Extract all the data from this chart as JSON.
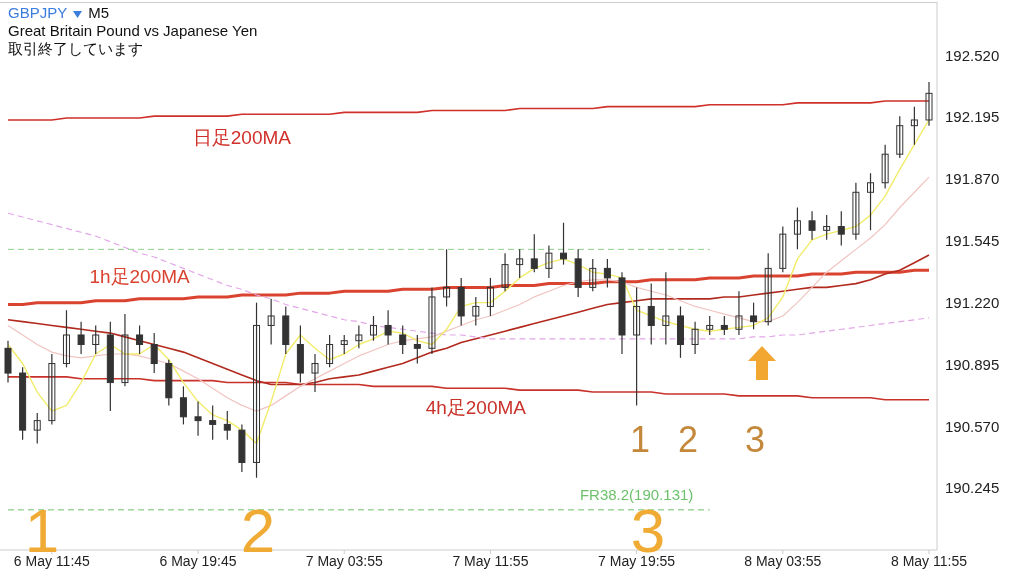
{
  "chart_data": {
    "type": "candlestick",
    "title": "GBPJPY",
    "subtitle": "Great Britain Pound vs Japanese Yen",
    "annotations": [
      "M5",
      "取引終了しています",
      "1",
      "2",
      "3",
      "1",
      "2",
      "3"
    ],
    "categories": [
      null,
      null,
      null,
      "6 May 11:45",
      null,
      null,
      null,
      null,
      null,
      null,
      null,
      null,
      null,
      "6 May 19:45",
      null,
      null,
      null,
      null,
      null,
      null,
      null,
      null,
      null,
      "7 May 03:55",
      null,
      null,
      null,
      null,
      null,
      null,
      null,
      null,
      null,
      "7 May 11:55",
      null,
      null,
      null,
      null,
      null,
      null,
      null,
      null,
      null,
      "7 May 19:55",
      null,
      null,
      null,
      null,
      null,
      null,
      null,
      null,
      null,
      "8 May 03:55",
      null,
      null,
      null,
      null,
      null,
      null,
      null,
      null,
      null,
      "8 May 11:55"
    ],
    "color": "#333333",
    "ohlc": [
      [
        190.98,
        191.02,
        190.8,
        190.85
      ],
      [
        190.85,
        190.88,
        190.5,
        190.55
      ],
      [
        190.55,
        190.64,
        190.48,
        190.6
      ],
      [
        190.6,
        190.95,
        190.58,
        190.9
      ],
      [
        190.9,
        191.18,
        190.88,
        191.05
      ],
      [
        191.05,
        191.12,
        190.95,
        191.0
      ],
      [
        191.0,
        191.1,
        190.95,
        191.05
      ],
      [
        191.05,
        191.12,
        190.65,
        190.8
      ],
      [
        190.8,
        191.16,
        190.78,
        191.05
      ],
      [
        191.05,
        191.1,
        190.95,
        191.0
      ],
      [
        191.0,
        191.06,
        190.85,
        190.9
      ],
      [
        190.9,
        190.92,
        190.68,
        190.72
      ],
      [
        190.72,
        190.78,
        190.58,
        190.62
      ],
      [
        190.62,
        190.7,
        190.52,
        190.6
      ],
      [
        190.6,
        190.68,
        190.5,
        190.58
      ],
      [
        190.58,
        190.65,
        190.5,
        190.55
      ],
      [
        190.55,
        190.58,
        190.33,
        190.38
      ],
      [
        190.38,
        191.22,
        190.3,
        191.1
      ],
      [
        191.1,
        191.24,
        191.0,
        191.15
      ],
      [
        191.15,
        191.2,
        190.95,
        191.0
      ],
      [
        191.0,
        191.1,
        190.8,
        190.85
      ],
      [
        190.85,
        190.95,
        190.75,
        190.9
      ],
      [
        190.9,
        191.05,
        190.88,
        191.0
      ],
      [
        191.0,
        191.05,
        190.95,
        191.02
      ],
      [
        191.02,
        191.1,
        190.98,
        191.05
      ],
      [
        191.05,
        191.15,
        191.02,
        191.1
      ],
      [
        191.1,
        191.18,
        191.0,
        191.05
      ],
      [
        191.05,
        191.1,
        190.95,
        191.0
      ],
      [
        191.0,
        191.05,
        190.9,
        190.98
      ],
      [
        190.98,
        191.3,
        190.95,
        191.25
      ],
      [
        191.25,
        191.5,
        191.2,
        191.3
      ],
      [
        191.3,
        191.35,
        191.1,
        191.15
      ],
      [
        191.15,
        191.25,
        191.1,
        191.2
      ],
      [
        191.2,
        191.35,
        191.15,
        191.3
      ],
      [
        191.3,
        191.48,
        191.28,
        191.42
      ],
      [
        191.42,
        191.5,
        191.35,
        191.45
      ],
      [
        191.45,
        191.58,
        191.38,
        191.4
      ],
      [
        191.4,
        191.52,
        191.35,
        191.48
      ],
      [
        191.48,
        191.64,
        191.42,
        191.45
      ],
      [
        191.45,
        191.5,
        191.25,
        191.3
      ],
      [
        191.3,
        191.45,
        191.28,
        191.4
      ],
      [
        191.4,
        191.45,
        191.3,
        191.35
      ],
      [
        191.35,
        191.38,
        190.95,
        191.05
      ],
      [
        191.05,
        191.3,
        190.68,
        191.2
      ],
      [
        191.2,
        191.32,
        191.0,
        191.1
      ],
      [
        191.1,
        191.38,
        191.0,
        191.15
      ],
      [
        191.15,
        191.2,
        190.93,
        191.0
      ],
      [
        191.0,
        191.12,
        190.95,
        191.08
      ],
      [
        191.08,
        191.15,
        191.05,
        191.1
      ],
      [
        191.1,
        191.15,
        191.05,
        191.08
      ],
      [
        191.08,
        191.28,
        191.05,
        191.15
      ],
      [
        191.15,
        191.22,
        191.08,
        191.12
      ],
      [
        191.12,
        191.48,
        191.1,
        191.4
      ],
      [
        191.4,
        191.62,
        191.38,
        191.58
      ],
      [
        191.58,
        191.72,
        191.5,
        191.65
      ],
      [
        191.65,
        191.7,
        191.55,
        191.6
      ],
      [
        191.6,
        191.68,
        191.55,
        191.62
      ],
      [
        191.62,
        191.7,
        191.52,
        191.58
      ],
      [
        191.58,
        191.85,
        191.55,
        191.8
      ],
      [
        191.8,
        191.9,
        191.6,
        191.85
      ],
      [
        191.85,
        192.05,
        191.82,
        192.0
      ],
      [
        192.0,
        192.2,
        191.98,
        192.15
      ],
      [
        192.15,
        192.25,
        192.05,
        192.18
      ],
      [
        192.18,
        192.38,
        192.15,
        192.32
      ]
    ],
    "series": [
      {
        "type": "line",
        "name": "日足200MA",
        "color": "#d0302a",
        "line_style": "solid",
        "values": [
          192.18,
          192.18,
          192.18,
          192.18,
          192.19,
          192.19,
          192.19,
          192.19,
          192.19,
          192.19,
          192.2,
          192.2,
          192.2,
          192.2,
          192.2,
          192.2,
          192.21,
          192.21,
          192.21,
          192.21,
          192.21,
          192.21,
          192.21,
          192.22,
          192.22,
          192.22,
          192.22,
          192.22,
          192.22,
          192.23,
          192.23,
          192.23,
          192.23,
          192.23,
          192.23,
          192.24,
          192.24,
          192.24,
          192.24,
          192.24,
          192.24,
          192.25,
          192.25,
          192.25,
          192.25,
          192.25,
          192.25,
          192.25,
          192.26,
          192.26,
          192.26,
          192.26,
          192.26,
          192.26,
          192.27,
          192.27,
          192.27,
          192.27,
          192.27,
          192.27,
          192.28,
          192.28,
          192.28,
          192.28
        ]
      },
      {
        "type": "line",
        "name": "1h足200MA",
        "color": "#d9432f",
        "line_style": "solid",
        "values": [
          191.21,
          191.21,
          191.22,
          191.22,
          191.22,
          191.22,
          191.23,
          191.23,
          191.23,
          191.24,
          191.24,
          191.24,
          191.24,
          191.25,
          191.25,
          191.25,
          191.26,
          191.26,
          191.26,
          191.26,
          191.27,
          191.27,
          191.27,
          191.28,
          191.28,
          191.28,
          191.28,
          191.29,
          191.29,
          191.29,
          191.3,
          191.3,
          191.3,
          191.3,
          191.31,
          191.31,
          191.31,
          191.32,
          191.32,
          191.32,
          191.32,
          191.33,
          191.33,
          191.33,
          191.34,
          191.34,
          191.34,
          191.34,
          191.35,
          191.35,
          191.35,
          191.36,
          191.36,
          191.36,
          191.36,
          191.37,
          191.37,
          191.37,
          191.38,
          191.38,
          191.38,
          191.38,
          191.39,
          191.39
        ]
      },
      {
        "type": "line",
        "name": "4h足200MA",
        "color": "#c8322a",
        "line_style": "solid",
        "values": [
          190.83,
          190.83,
          190.83,
          190.83,
          190.83,
          190.82,
          190.82,
          190.82,
          190.82,
          190.82,
          190.81,
          190.81,
          190.81,
          190.81,
          190.81,
          190.8,
          190.8,
          190.8,
          190.8,
          190.8,
          190.79,
          190.79,
          190.79,
          190.79,
          190.79,
          190.78,
          190.78,
          190.78,
          190.78,
          190.78,
          190.77,
          190.77,
          190.77,
          190.77,
          190.77,
          190.76,
          190.76,
          190.76,
          190.76,
          190.76,
          190.75,
          190.75,
          190.75,
          190.75,
          190.75,
          190.74,
          190.74,
          190.74,
          190.74,
          190.74,
          190.73,
          190.73,
          190.73,
          190.73,
          190.73,
          190.72,
          190.72,
          190.72,
          190.72,
          190.72,
          190.71,
          190.71,
          190.71,
          190.71
        ]
      },
      {
        "type": "line",
        "color": "#b22a1e",
        "line_style": "solid",
        "values": [
          191.13,
          191.12,
          191.11,
          191.1,
          191.09,
          191.08,
          191.07,
          191.06,
          191.04,
          191.02,
          191.0,
          190.98,
          190.96,
          190.93,
          190.9,
          190.87,
          190.84,
          190.81,
          190.79,
          190.79,
          190.79,
          190.8,
          190.82,
          190.83,
          190.84,
          190.86,
          190.88,
          190.9,
          190.93,
          190.96,
          190.98,
          191.01,
          191.03,
          191.05,
          191.07,
          191.09,
          191.11,
          191.13,
          191.15,
          191.17,
          191.19,
          191.21,
          191.22,
          191.23,
          191.24,
          191.24,
          191.24,
          191.24,
          191.24,
          191.25,
          191.25,
          191.26,
          191.27,
          191.28,
          191.29,
          191.3,
          191.3,
          191.31,
          191.32,
          191.34,
          191.37,
          191.39,
          191.43,
          191.47
        ]
      },
      {
        "type": "line",
        "color": "#e3a6e8",
        "line_style": "dashed",
        "values": [
          191.69,
          191.67,
          191.65,
          191.63,
          191.61,
          191.59,
          191.57,
          191.54,
          191.51,
          191.48,
          191.46,
          191.43,
          191.4,
          191.37,
          191.34,
          191.31,
          191.29,
          191.26,
          191.24,
          191.21,
          191.19,
          191.17,
          191.15,
          191.13,
          191.12,
          191.1,
          191.09,
          191.08,
          191.07,
          191.06,
          191.05,
          191.05,
          191.04,
          191.03,
          191.03,
          191.03,
          191.03,
          191.03,
          191.03,
          191.03,
          191.03,
          191.03,
          191.03,
          191.03,
          191.03,
          191.03,
          191.03,
          191.03,
          191.03,
          191.03,
          191.03,
          191.04,
          191.04,
          191.05,
          191.05,
          191.06,
          191.07,
          191.08,
          191.09,
          191.1,
          191.11,
          191.12,
          191.13,
          191.14
        ]
      },
      {
        "type": "line",
        "color": "#f0c4c0",
        "line_style": "solid",
        "values": [
          191.1,
          191.05,
          191.0,
          190.96,
          190.94,
          190.93,
          190.94,
          190.95,
          190.95,
          190.94,
          190.92,
          190.9,
          190.86,
          190.82,
          190.77,
          190.72,
          190.68,
          190.65,
          190.68,
          190.73,
          190.78,
          190.82,
          190.86,
          190.9,
          190.94,
          190.97,
          191.0,
          191.02,
          191.03,
          191.04,
          191.07,
          191.1,
          191.13,
          191.15,
          191.18,
          191.21,
          191.25,
          191.28,
          191.31,
          191.33,
          191.34,
          191.34,
          191.33,
          191.3,
          191.28,
          191.26,
          191.23,
          191.2,
          191.18,
          191.16,
          191.14,
          191.12,
          191.12,
          191.15,
          191.22,
          191.3,
          191.38,
          191.44,
          191.5,
          191.56,
          191.63,
          191.72,
          191.8,
          191.88
        ]
      },
      {
        "type": "line",
        "color": "#f2ec6a",
        "line_style": "solid",
        "values": [
          191.0,
          190.9,
          190.75,
          190.65,
          190.68,
          190.8,
          190.95,
          191.0,
          190.95,
          190.95,
          191.0,
          190.92,
          190.8,
          190.7,
          190.63,
          190.6,
          190.55,
          190.48,
          190.7,
          190.95,
          191.05,
          190.98,
          190.92,
          190.95,
          191.0,
          191.03,
          191.07,
          191.06,
          191.02,
          191.0,
          191.08,
          191.2,
          191.22,
          191.22,
          191.28,
          191.35,
          191.4,
          191.43,
          191.45,
          191.42,
          191.38,
          191.37,
          191.35,
          191.18,
          191.15,
          191.12,
          191.1,
          191.08,
          191.07,
          191.08,
          191.09,
          191.1,
          191.14,
          191.25,
          191.45,
          191.55,
          191.58,
          191.6,
          191.62,
          191.68,
          191.78,
          191.92,
          192.05,
          192.18
        ]
      },
      {
        "type": "line",
        "color": "#8fd08a",
        "line_style": "dashed",
        "values": [
          191.5,
          191.5,
          191.5,
          191.5,
          191.5,
          191.5,
          191.5,
          191.5,
          191.5,
          191.5,
          191.5,
          191.5,
          191.5,
          191.5,
          191.5,
          191.5,
          191.5,
          191.5,
          191.5,
          191.5,
          191.5,
          191.5,
          191.5,
          191.5,
          191.5,
          191.5,
          191.5,
          191.5,
          191.5,
          191.5,
          191.5,
          191.5,
          191.5,
          191.5,
          191.5,
          191.5,
          191.5,
          191.5,
          191.5,
          191.5,
          191.5,
          191.5,
          191.5,
          191.5,
          191.5,
          191.5,
          191.5,
          191.5,
          191.5,
          null,
          null,
          null,
          null,
          null,
          null,
          null,
          null,
          null,
          null,
          null,
          null,
          null,
          null,
          null
        ]
      },
      {
        "type": "line",
        "name": "FR38.2(190.131)",
        "color": "#6cc16a",
        "line_style": "dashed",
        "values": [
          190.131,
          190.131,
          190.131,
          190.131,
          190.131,
          190.131,
          190.131,
          190.131,
          190.131,
          190.131,
          190.131,
          190.131,
          190.131,
          190.131,
          190.131,
          190.131,
          190.131,
          190.131,
          190.131,
          190.131,
          190.131,
          190.131,
          190.131,
          190.131,
          190.131,
          190.131,
          190.131,
          190.131,
          190.131,
          190.131,
          190.131,
          190.131,
          190.131,
          190.131,
          190.131,
          190.131,
          190.131,
          190.131,
          190.131,
          190.131,
          190.131,
          190.131,
          190.131,
          190.131,
          190.131,
          190.131,
          190.131,
          190.131,
          190.131,
          null,
          null,
          null,
          null,
          null,
          null,
          null,
          null,
          null,
          null,
          null,
          null,
          null,
          null,
          null
        ]
      }
    ],
    "ylim": [
      189.92,
      192.8
    ],
    "yticks": [
      {
        "value": 190.245,
        "label": "190.245"
      },
      {
        "value": 190.57,
        "label": "190.570"
      },
      {
        "value": 190.895,
        "label": "190.895"
      },
      {
        "value": 191.22,
        "label": "191.220"
      },
      {
        "value": 191.545,
        "label": "191.545"
      },
      {
        "value": 191.87,
        "label": "191.870"
      },
      {
        "value": 192.195,
        "label": "192.195"
      },
      {
        "value": 192.52,
        "label": "192.520"
      }
    ]
  }
}
